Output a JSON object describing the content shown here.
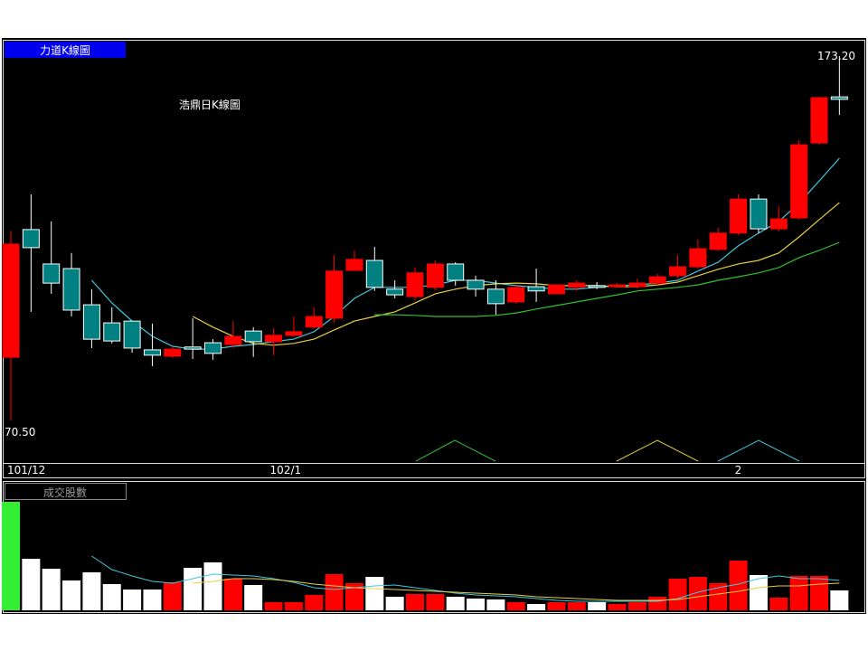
{
  "chart_data": [
    {
      "type": "candlestick",
      "panel_label": "力道K線圖",
      "title": "浩鼎日K線圖",
      "categories": [
        "101/12",
        null,
        null,
        null,
        null,
        null,
        null,
        null,
        null,
        null,
        null,
        null,
        null,
        "102/1",
        null,
        null,
        null,
        null,
        null,
        null,
        null,
        null,
        null,
        null,
        null,
        null,
        null,
        null,
        null,
        null,
        null,
        null,
        null,
        null,
        null,
        null,
        "2",
        null,
        null,
        null,
        null,
        null
      ],
      "open": [
        88.3,
        124.3,
        114.6,
        113.3,
        103.1,
        98.0,
        98.5,
        90.4,
        88.6,
        91.2,
        92.4,
        91.9,
        95.7,
        92.7,
        94.5,
        96.8,
        99.3,
        112.8,
        115.6,
        107.5,
        105.4,
        108.0,
        114.6,
        110.0,
        107.5,
        103.9,
        108.2,
        106.2,
        108.0,
        108.5,
        108.2,
        108.2,
        109.2,
        111.3,
        113.8,
        118.7,
        123.3,
        132.9,
        124.5,
        127.6,
        148.7,
        161.7
      ],
      "high": [
        124.0,
        134.2,
        126.6,
        117.7,
        107.5,
        102.4,
        98.5,
        97.8,
        91.4,
        99.3,
        93.4,
        98.5,
        96.8,
        96.5,
        99.8,
        102.4,
        117.1,
        118.4,
        119.4,
        110.0,
        113.6,
        115.6,
        115.1,
        111.3,
        110.0,
        108.5,
        113.3,
        108.7,
        110.0,
        109.5,
        109.2,
        110.5,
        111.8,
        117.1,
        121.5,
        124.8,
        134.2,
        134.2,
        130.9,
        149.5,
        161.7,
        173.2
      ],
      "low": [
        70.5,
        101.1,
        106.2,
        99.8,
        90.9,
        92.2,
        89.6,
        85.8,
        88.1,
        87.8,
        87.6,
        90.9,
        88.4,
        88.9,
        94.0,
        96.3,
        98.0,
        112.6,
        107.0,
        104.9,
        104.4,
        107.2,
        108.5,
        105.4,
        100.3,
        103.4,
        103.9,
        106.2,
        107.0,
        107.5,
        108.0,
        107.7,
        108.7,
        110.5,
        113.3,
        118.2,
        122.8,
        123.3,
        123.8,
        127.1,
        148.2,
        156.6
      ],
      "close": [
        120.2,
        119.2,
        109.2,
        101.6,
        93.4,
        92.9,
        90.9,
        88.9,
        90.6,
        90.6,
        89.4,
        94.2,
        92.7,
        94.5,
        95.5,
        99.8,
        112.6,
        115.9,
        108.0,
        105.9,
        112.1,
        114.6,
        110.0,
        107.5,
        103.4,
        108.0,
        107.0,
        108.7,
        109.2,
        108.0,
        108.7,
        109.2,
        111.0,
        113.8,
        118.9,
        123.3,
        132.9,
        124.5,
        127.3,
        148.2,
        161.5,
        161.0
      ],
      "up_color": "#ff0000",
      "down_color": "#008080",
      "series": [
        {
          "color": "#40c8e0",
          "values": [
            null,
            null,
            null,
            null,
            110.0,
            103.6,
            98.5,
            94.2,
            91.4,
            90.6,
            90.6,
            91.4,
            91.9,
            92.7,
            93.4,
            95.5,
            99.8,
            104.9,
            108.0,
            108.0,
            108.0,
            108.7,
            110.0,
            110.0,
            109.2,
            108.5,
            108.0,
            107.5,
            107.5,
            108.0,
            108.5,
            108.7,
            109.2,
            110.0,
            112.6,
            115.1,
            119.7,
            123.3,
            126.6,
            131.7,
            138.0,
            144.4
          ]
        },
        {
          "color": "#e8d040",
          "values": [
            null,
            null,
            null,
            null,
            null,
            null,
            null,
            null,
            null,
            99.8,
            96.8,
            94.2,
            92.2,
            91.7,
            92.2,
            93.4,
            96.0,
            98.5,
            99.8,
            101.1,
            103.6,
            106.2,
            107.5,
            108.5,
            109.0,
            109.2,
            109.0,
            108.5,
            108.5,
            108.5,
            108.2,
            108.2,
            108.7,
            109.5,
            111.3,
            113.1,
            114.6,
            115.6,
            117.7,
            122.2,
            127.1,
            131.9
          ]
        },
        {
          "color": "#30c030",
          "values": [
            null,
            null,
            null,
            null,
            null,
            null,
            null,
            null,
            null,
            null,
            null,
            null,
            null,
            null,
            null,
            null,
            null,
            null,
            100.3,
            100.3,
            100.1,
            99.8,
            99.8,
            99.8,
            100.1,
            100.8,
            101.9,
            102.9,
            103.9,
            104.9,
            105.9,
            107.0,
            107.5,
            108.0,
            108.7,
            110.0,
            111.0,
            112.1,
            113.6,
            116.4,
            118.4,
            120.7
          ]
        }
      ],
      "ylim": [
        70.5,
        173.2
      ],
      "yticks": [
        {
          "value": 70.5,
          "label": "70.50"
        },
        {
          "value": 173.2,
          "label": "173.20"
        }
      ]
    },
    {
      "type": "bar",
      "panel_label": "成交股數",
      "values": [
        120,
        57,
        46,
        33,
        42,
        29,
        23,
        23,
        31,
        47,
        53,
        35,
        28,
        9,
        9,
        17,
        40,
        30,
        37,
        15,
        18,
        18,
        15,
        13,
        12,
        9,
        7,
        9,
        9,
        9,
        7,
        9,
        15,
        35,
        37,
        30,
        55,
        39,
        14,
        38,
        38,
        22
      ],
      "colors": [
        "#33ee33",
        "#ffffff",
        "#ffffff",
        "#ffffff",
        "#ffffff",
        "#ffffff",
        "#ffffff",
        "#ffffff",
        "#ff0000",
        "#ffffff",
        "#ffffff",
        "#ff0000",
        "#ffffff",
        "#ff0000",
        "#ff0000",
        "#ff0000",
        "#ff0000",
        "#ff0000",
        "#ffffff",
        "#ffffff",
        "#ff0000",
        "#ff0000",
        "#ffffff",
        "#ffffff",
        "#ffffff",
        "#ff0000",
        "#ffffff",
        "#ff0000",
        "#ff0000",
        "#ffffff",
        "#ff0000",
        "#ff0000",
        "#ff0000",
        "#ff0000",
        "#ff0000",
        "#ff0000",
        "#ff0000",
        "#ffffff",
        "#ff0000",
        "#ff0000",
        "#ff0000",
        "#ffffff"
      ],
      "series": [
        {
          "color": "#40c8e0",
          "values": [
            null,
            null,
            null,
            null,
            60,
            45,
            38,
            32,
            30,
            35,
            40,
            39,
            38,
            35,
            31,
            25,
            23,
            25,
            27,
            28,
            25,
            22,
            19,
            17,
            16,
            15,
            13,
            11,
            10,
            10,
            10,
            10,
            10,
            13,
            20,
            25,
            29,
            35,
            38,
            35,
            35,
            33
          ]
        },
        {
          "color": "#e8d040",
          "values": [
            null,
            null,
            null,
            null,
            null,
            null,
            null,
            null,
            null,
            30,
            32,
            35,
            35,
            34,
            32,
            29,
            27,
            25,
            24,
            23,
            22,
            21,
            20,
            19,
            18,
            17,
            15,
            14,
            13,
            12,
            11,
            11,
            11,
            12,
            15,
            18,
            21,
            25,
            27,
            27,
            29,
            30
          ]
        }
      ],
      "ylim": [
        0,
        120
      ]
    }
  ]
}
